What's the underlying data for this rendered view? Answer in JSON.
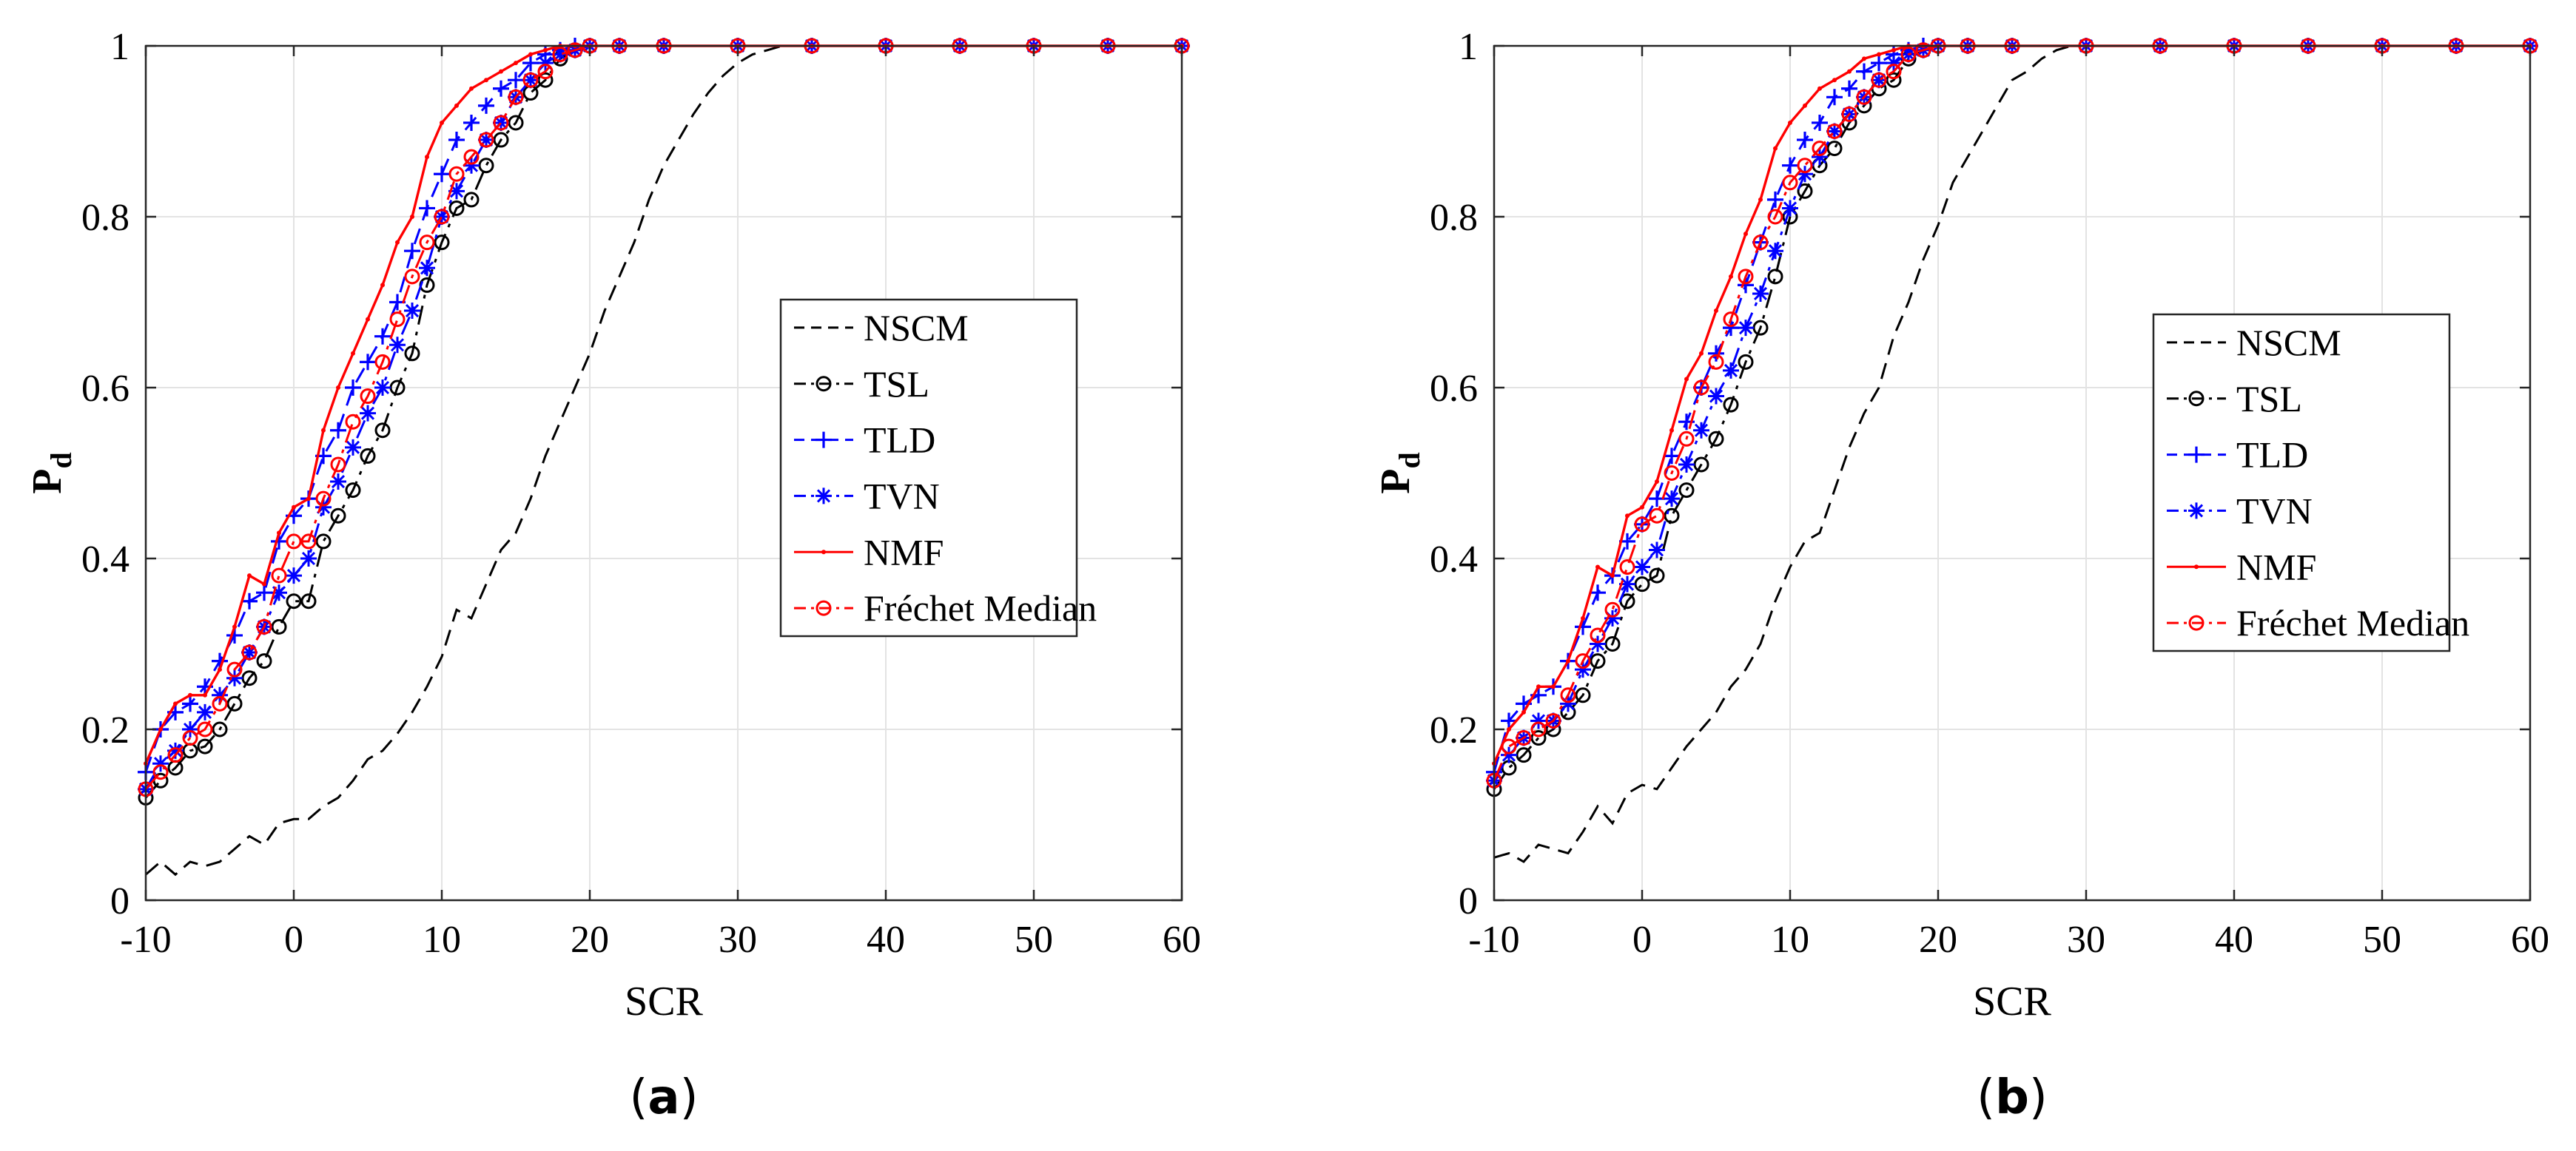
{
  "chart_data": [
    {
      "panel": "a",
      "caption_letter": "a",
      "type": "line",
      "xlabel": "SCR",
      "ylabel": "P",
      "ylabel_sub": "d",
      "xlim": [
        -10,
        60
      ],
      "ylim": [
        0,
        1
      ],
      "xticks": [
        -10,
        0,
        10,
        20,
        30,
        40,
        50,
        60
      ],
      "yticks": [
        0,
        0.2,
        0.4,
        0.6,
        0.8,
        1
      ],
      "grid": true,
      "legend_position": "center-right",
      "series": [
        {
          "name": "NSCM",
          "color": "#000000",
          "style": "dashed",
          "marker": "none",
          "x": [
            -10,
            -9,
            -8,
            -7,
            -6,
            -5,
            -4,
            -3,
            -2,
            -1,
            0,
            1,
            2,
            3,
            4,
            5,
            6,
            7,
            8,
            9,
            10,
            11,
            12,
            13,
            14,
            15,
            16,
            17,
            18,
            19,
            20,
            21,
            22,
            23,
            24,
            25,
            26,
            27,
            28,
            29,
            30,
            31,
            32,
            33,
            35,
            40,
            45,
            50,
            55,
            60
          ],
          "y": [
            0.03,
            0.045,
            0.03,
            0.045,
            0.04,
            0.045,
            0.06,
            0.075,
            0.065,
            0.09,
            0.095,
            0.095,
            0.11,
            0.12,
            0.14,
            0.165,
            0.175,
            0.195,
            0.22,
            0.25,
            0.285,
            0.34,
            0.33,
            0.37,
            0.41,
            0.43,
            0.47,
            0.52,
            0.56,
            0.6,
            0.64,
            0.69,
            0.73,
            0.77,
            0.82,
            0.86,
            0.89,
            0.92,
            0.945,
            0.965,
            0.98,
            0.99,
            0.995,
            1,
            1,
            1,
            1,
            1,
            1,
            1
          ]
        },
        {
          "name": "TSL",
          "color": "#000000",
          "style": "dashdot",
          "marker": "circle",
          "x": [
            -10,
            -9,
            -8,
            -7,
            -6,
            -5,
            -4,
            -3,
            -2,
            -1,
            0,
            1,
            2,
            3,
            4,
            5,
            6,
            7,
            8,
            9,
            10,
            11,
            12,
            13,
            14,
            15,
            16,
            17,
            18,
            19,
            20,
            22,
            25,
            30,
            35,
            40,
            45,
            50,
            55,
            60
          ],
          "y": [
            0.12,
            0.14,
            0.155,
            0.175,
            0.18,
            0.2,
            0.23,
            0.26,
            0.28,
            0.32,
            0.35,
            0.35,
            0.42,
            0.45,
            0.48,
            0.52,
            0.55,
            0.6,
            0.64,
            0.72,
            0.77,
            0.81,
            0.82,
            0.86,
            0.89,
            0.91,
            0.945,
            0.96,
            0.985,
            0.995,
            1,
            1,
            1,
            1,
            1,
            1,
            1,
            1,
            1,
            1
          ]
        },
        {
          "name": "TLD",
          "color": "#0000ff",
          "style": "dashed",
          "marker": "plus",
          "x": [
            -10,
            -9,
            -8,
            -7,
            -6,
            -5,
            -4,
            -3,
            -2,
            -1,
            0,
            1,
            2,
            3,
            4,
            5,
            6,
            7,
            8,
            9,
            10,
            11,
            12,
            13,
            14,
            15,
            16,
            17,
            18,
            19,
            20,
            22,
            25,
            30,
            35,
            40,
            45,
            50,
            55,
            60
          ],
          "y": [
            0.15,
            0.2,
            0.22,
            0.23,
            0.25,
            0.28,
            0.31,
            0.35,
            0.36,
            0.42,
            0.45,
            0.47,
            0.52,
            0.55,
            0.6,
            0.63,
            0.66,
            0.7,
            0.76,
            0.81,
            0.85,
            0.89,
            0.91,
            0.93,
            0.95,
            0.96,
            0.98,
            0.99,
            0.995,
            1,
            1,
            1,
            1,
            1,
            1,
            1,
            1,
            1,
            1,
            1
          ]
        },
        {
          "name": "TVN",
          "color": "#0000ff",
          "style": "dashdot",
          "marker": "asterisk",
          "x": [
            -10,
            -9,
            -8,
            -7,
            -6,
            -5,
            -4,
            -3,
            -2,
            -1,
            0,
            1,
            2,
            3,
            4,
            5,
            6,
            7,
            8,
            9,
            10,
            11,
            12,
            13,
            14,
            15,
            16,
            17,
            18,
            19,
            20,
            22,
            25,
            30,
            35,
            40,
            45,
            50,
            55,
            60
          ],
          "y": [
            0.13,
            0.16,
            0.175,
            0.2,
            0.22,
            0.24,
            0.26,
            0.29,
            0.32,
            0.36,
            0.38,
            0.4,
            0.46,
            0.49,
            0.53,
            0.57,
            0.6,
            0.65,
            0.69,
            0.74,
            0.8,
            0.83,
            0.86,
            0.89,
            0.91,
            0.94,
            0.96,
            0.98,
            0.99,
            0.995,
            1,
            1,
            1,
            1,
            1,
            1,
            1,
            1,
            1,
            1
          ]
        },
        {
          "name": "NMF",
          "color": "#ff0000",
          "style": "solid",
          "marker": "dot",
          "x": [
            -10,
            -9,
            -8,
            -7,
            -6,
            -5,
            -4,
            -3,
            -2,
            -1,
            0,
            1,
            2,
            3,
            4,
            5,
            6,
            7,
            8,
            9,
            10,
            11,
            12,
            13,
            14,
            15,
            16,
            17,
            18,
            19,
            20,
            22,
            25,
            30,
            35,
            40,
            45,
            50,
            55,
            60
          ],
          "y": [
            0.16,
            0.2,
            0.23,
            0.24,
            0.24,
            0.27,
            0.32,
            0.38,
            0.37,
            0.43,
            0.46,
            0.47,
            0.55,
            0.6,
            0.64,
            0.68,
            0.72,
            0.77,
            0.8,
            0.87,
            0.91,
            0.93,
            0.95,
            0.96,
            0.97,
            0.98,
            0.99,
            0.995,
            1,
            1,
            1,
            1,
            1,
            1,
            1,
            1,
            1,
            1,
            1,
            1
          ]
        },
        {
          "name": "Fréchet Median",
          "color": "#ff0000",
          "style": "dashdot",
          "marker": "circle",
          "x": [
            -10,
            -9,
            -8,
            -7,
            -6,
            -5,
            -4,
            -3,
            -2,
            -1,
            0,
            1,
            2,
            3,
            4,
            5,
            6,
            7,
            8,
            9,
            10,
            11,
            12,
            13,
            14,
            15,
            16,
            17,
            18,
            19,
            20,
            22,
            25,
            30,
            35,
            40,
            45,
            50,
            55,
            60
          ],
          "y": [
            0.13,
            0.15,
            0.17,
            0.19,
            0.2,
            0.23,
            0.27,
            0.29,
            0.32,
            0.38,
            0.42,
            0.42,
            0.47,
            0.51,
            0.56,
            0.59,
            0.63,
            0.68,
            0.73,
            0.77,
            0.8,
            0.85,
            0.87,
            0.89,
            0.91,
            0.94,
            0.96,
            0.97,
            0.99,
            0.995,
            1,
            1,
            1,
            1,
            1,
            1,
            1,
            1,
            1,
            1
          ]
        }
      ]
    },
    {
      "panel": "b",
      "caption_letter": "b",
      "type": "line",
      "xlabel": "SCR",
      "ylabel": "P",
      "ylabel_sub": "d",
      "xlim": [
        -10,
        60
      ],
      "ylim": [
        0,
        1
      ],
      "xticks": [
        -10,
        0,
        10,
        20,
        30,
        40,
        50,
        60
      ],
      "yticks": [
        0,
        0.2,
        0.4,
        0.6,
        0.8,
        1
      ],
      "grid": true,
      "legend_position": "center-right",
      "series": [
        {
          "name": "NSCM",
          "color": "#000000",
          "style": "dashed",
          "marker": "none",
          "x": [
            -10,
            -9,
            -8,
            -7,
            -6,
            -5,
            -4,
            -3,
            -2,
            -1,
            0,
            1,
            2,
            3,
            4,
            5,
            6,
            7,
            8,
            9,
            10,
            11,
            12,
            13,
            14,
            15,
            16,
            17,
            18,
            19,
            20,
            21,
            22,
            23,
            24,
            25,
            26,
            27,
            28,
            29,
            30,
            35,
            40,
            45,
            50,
            55,
            60
          ],
          "y": [
            0.05,
            0.055,
            0.045,
            0.065,
            0.06,
            0.055,
            0.08,
            0.11,
            0.09,
            0.125,
            0.135,
            0.13,
            0.155,
            0.18,
            0.2,
            0.22,
            0.25,
            0.27,
            0.3,
            0.35,
            0.39,
            0.42,
            0.43,
            0.48,
            0.53,
            0.57,
            0.6,
            0.66,
            0.7,
            0.75,
            0.79,
            0.84,
            0.87,
            0.9,
            0.93,
            0.96,
            0.97,
            0.985,
            0.995,
            1,
            1,
            1,
            1,
            1,
            1,
            1,
            1
          ]
        },
        {
          "name": "TSL",
          "color": "#000000",
          "style": "dashdot",
          "marker": "circle",
          "x": [
            -10,
            -9,
            -8,
            -7,
            -6,
            -5,
            -4,
            -3,
            -2,
            -1,
            0,
            1,
            2,
            3,
            4,
            5,
            6,
            7,
            8,
            9,
            10,
            11,
            12,
            13,
            14,
            15,
            16,
            17,
            18,
            19,
            20,
            22,
            25,
            30,
            35,
            40,
            45,
            50,
            55,
            60
          ],
          "y": [
            0.13,
            0.155,
            0.17,
            0.19,
            0.2,
            0.22,
            0.24,
            0.28,
            0.3,
            0.35,
            0.37,
            0.38,
            0.45,
            0.48,
            0.51,
            0.54,
            0.58,
            0.63,
            0.67,
            0.73,
            0.8,
            0.83,
            0.86,
            0.88,
            0.91,
            0.93,
            0.95,
            0.96,
            0.985,
            0.995,
            1,
            1,
            1,
            1,
            1,
            1,
            1,
            1,
            1,
            1
          ]
        },
        {
          "name": "TLD",
          "color": "#0000ff",
          "style": "dashed",
          "marker": "plus",
          "x": [
            -10,
            -9,
            -8,
            -7,
            -6,
            -5,
            -4,
            -3,
            -2,
            -1,
            0,
            1,
            2,
            3,
            4,
            5,
            6,
            7,
            8,
            9,
            10,
            11,
            12,
            13,
            14,
            15,
            16,
            17,
            18,
            19,
            20,
            22,
            25,
            30,
            35,
            40,
            45,
            50,
            55,
            60
          ],
          "y": [
            0.15,
            0.21,
            0.23,
            0.24,
            0.25,
            0.28,
            0.32,
            0.36,
            0.38,
            0.42,
            0.44,
            0.47,
            0.52,
            0.56,
            0.6,
            0.64,
            0.67,
            0.72,
            0.77,
            0.82,
            0.86,
            0.89,
            0.91,
            0.94,
            0.95,
            0.97,
            0.98,
            0.99,
            0.995,
            1,
            1,
            1,
            1,
            1,
            1,
            1,
            1,
            1,
            1,
            1
          ]
        },
        {
          "name": "TVN",
          "color": "#0000ff",
          "style": "dashdot",
          "marker": "asterisk",
          "x": [
            -10,
            -9,
            -8,
            -7,
            -6,
            -5,
            -4,
            -3,
            -2,
            -1,
            0,
            1,
            2,
            3,
            4,
            5,
            6,
            7,
            8,
            9,
            10,
            11,
            12,
            13,
            14,
            15,
            16,
            17,
            18,
            19,
            20,
            22,
            25,
            30,
            35,
            40,
            45,
            50,
            55,
            60
          ],
          "y": [
            0.14,
            0.17,
            0.19,
            0.21,
            0.21,
            0.23,
            0.27,
            0.3,
            0.33,
            0.37,
            0.39,
            0.41,
            0.47,
            0.51,
            0.55,
            0.59,
            0.62,
            0.67,
            0.71,
            0.76,
            0.81,
            0.85,
            0.87,
            0.9,
            0.92,
            0.94,
            0.96,
            0.98,
            0.99,
            0.995,
            1,
            1,
            1,
            1,
            1,
            1,
            1,
            1,
            1,
            1
          ]
        },
        {
          "name": "NMF",
          "color": "#ff0000",
          "style": "solid",
          "marker": "dot",
          "x": [
            -10,
            -9,
            -8,
            -7,
            -6,
            -5,
            -4,
            -3,
            -2,
            -1,
            0,
            1,
            2,
            3,
            4,
            5,
            6,
            7,
            8,
            9,
            10,
            11,
            12,
            13,
            14,
            15,
            16,
            17,
            18,
            19,
            20,
            22,
            25,
            30,
            35,
            40,
            45,
            50,
            55,
            60
          ],
          "y": [
            0.16,
            0.2,
            0.22,
            0.25,
            0.25,
            0.28,
            0.33,
            0.39,
            0.38,
            0.45,
            0.46,
            0.49,
            0.55,
            0.61,
            0.64,
            0.69,
            0.73,
            0.78,
            0.82,
            0.88,
            0.91,
            0.93,
            0.95,
            0.96,
            0.97,
            0.985,
            0.99,
            0.995,
            1,
            1,
            1,
            1,
            1,
            1,
            1,
            1,
            1,
            1,
            1,
            1
          ]
        },
        {
          "name": "Fréchet Median",
          "color": "#ff0000",
          "style": "dashdot",
          "marker": "circle",
          "x": [
            -10,
            -9,
            -8,
            -7,
            -6,
            -5,
            -4,
            -3,
            -2,
            -1,
            0,
            1,
            2,
            3,
            4,
            5,
            6,
            7,
            8,
            9,
            10,
            11,
            12,
            13,
            14,
            15,
            16,
            17,
            18,
            19,
            20,
            22,
            25,
            30,
            35,
            40,
            45,
            50,
            55,
            60
          ],
          "y": [
            0.14,
            0.18,
            0.19,
            0.2,
            0.21,
            0.24,
            0.28,
            0.31,
            0.34,
            0.39,
            0.44,
            0.45,
            0.5,
            0.54,
            0.6,
            0.63,
            0.68,
            0.73,
            0.77,
            0.8,
            0.84,
            0.86,
            0.88,
            0.9,
            0.92,
            0.94,
            0.96,
            0.97,
            0.99,
            0.995,
            1,
            1,
            1,
            1,
            1,
            1,
            1,
            1,
            1,
            1
          ]
        }
      ]
    }
  ]
}
